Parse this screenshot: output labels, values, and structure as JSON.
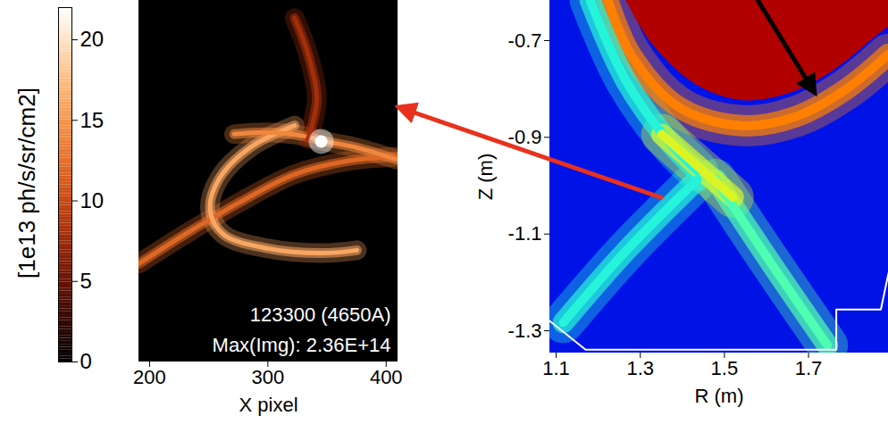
{
  "chart_data": [
    {
      "type": "image",
      "colorbar": {
        "label": "[1e13 ph/s/sr/cm2]",
        "range": [
          0,
          22
        ],
        "ticks": [
          0,
          5,
          10,
          15,
          20
        ]
      },
      "xlabel": "X pixel",
      "xlim": [
        191,
        410
      ],
      "xticks": [
        200,
        300,
        400
      ],
      "ylim": [
        0,
        100
      ],
      "tick_labels": "x",
      "annotations": [
        "123300 (4650A)",
        "Max(Img): 2.36E+14"
      ],
      "background": 0,
      "features": [
        {
          "x": [
            191,
            232.4,
            277.5,
            322.6,
            367.7,
            409
          ],
          "y": [
            27.2,
            35.8,
            44.4,
            51.9,
            55.6,
            56.8
          ],
          "value": 12
        },
        {
          "x": [
            322.6,
            285,
            258.7,
            251.2,
            262.4,
            300,
            345.1,
            375.2
          ],
          "y": [
            65.4,
            59.3,
            50.6,
            42.0,
            35.3,
            31.4,
            30.1,
            30.9
          ],
          "value": 16
        },
        {
          "x": [
            271.5,
            300,
            330.1,
            348.9,
            375.2,
            409
          ],
          "y": [
            63.0,
            63.5,
            62.5,
            61.0,
            59.3,
            56.0
          ],
          "value": 14
        },
        {
          "x": [
            333.9,
            341.4,
            333.9,
            322.6
          ],
          "y": [
            61.7,
            72.8,
            85.2,
            95.1
          ],
          "value": 8
        }
      ],
      "spots": [
        {
          "x": 345.1,
          "y": 61.0,
          "value": 22
        }
      ]
    },
    {
      "type": "image",
      "xlabel": "R (m)",
      "ylabel": "Z (m)",
      "xlim": [
        1.085,
        1.89
      ],
      "ylim": [
        -1.346,
        -0.617
      ],
      "xticks": [
        1.1,
        1.3,
        1.5,
        1.7
      ],
      "yticks": [
        -0.7,
        -0.9,
        -1.1,
        -1.3
      ],
      "clim": [
        0,
        1
      ],
      "background": 0.12,
      "core": {
        "x": [
          1.266,
          1.33,
          1.436,
          1.543,
          1.649,
          1.755,
          1.862,
          1.89
        ],
        "y": [
          -0.617,
          -0.709,
          -0.793,
          -0.824,
          -0.811,
          -0.765,
          -0.691,
          -0.672
        ],
        "value": 0.95
      },
      "features": [
        {
          "x": [
            1.223,
            1.277,
            1.394,
            1.543,
            1.67,
            1.787,
            1.89
          ],
          "y": [
            -0.617,
            -0.728,
            -0.839,
            -0.876,
            -0.857,
            -0.802,
            -0.728
          ],
          "value": 0.75
        },
        {
          "x": [
            1.181,
            1.266,
            1.372,
            1.436
          ],
          "y": [
            -0.617,
            -0.783,
            -0.913,
            -0.969
          ],
          "value": 0.4
        },
        {
          "x": [
            1.436,
            1.266,
            1.117
          ],
          "y": [
            -0.987,
            -1.135,
            -1.283
          ],
          "value": 0.4
        },
        {
          "x": [
            1.479,
            1.606,
            1.745
          ],
          "y": [
            -0.987,
            -1.154,
            -1.33
          ],
          "value": 0.45
        },
        {
          "x": [
            1.351,
            1.521
          ],
          "y": [
            -0.894,
            -1.024
          ],
          "value": 0.6
        }
      ],
      "wall": {
        "x": [
          1.085,
          1.17,
          1.766,
          1.766,
          1.872,
          1.89
        ],
        "y": [
          -1.28,
          -1.339,
          -1.339,
          -1.256,
          -1.256,
          -1.181
        ]
      }
    }
  ]
}
